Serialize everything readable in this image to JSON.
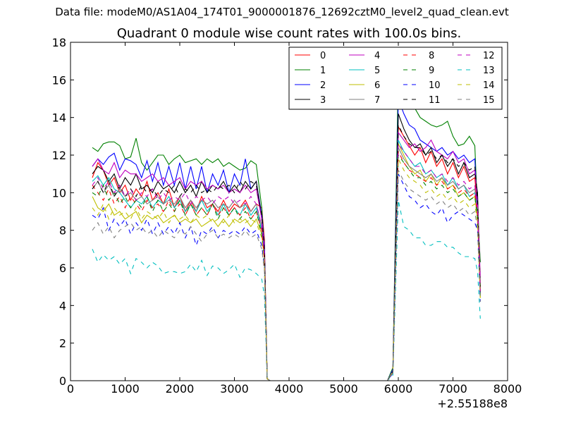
{
  "figure": {
    "suptitle": "Data file: modeM0/AS1A04_174T01_9000001876_12692cztM0_level2_quad_clean.evt",
    "title": "Quadrant 0 module wise count rates with 100.0s bins.",
    "x_offset_label": "+2.55188e8"
  },
  "chart_data": {
    "type": "line",
    "title": "Quadrant 0 module wise count rates with 100.0s bins.",
    "xlabel": "",
    "ylabel": "",
    "xlim": [
      0,
      8000
    ],
    "ylim": [
      0,
      18
    ],
    "x_ticks": [
      0,
      1000,
      2000,
      3000,
      4000,
      5000,
      6000,
      7000,
      8000
    ],
    "y_ticks": [
      0,
      2,
      4,
      6,
      8,
      10,
      12,
      14,
      16,
      18
    ],
    "x_offset": "+2.55188e8",
    "grid": false,
    "legend_position": "top-right",
    "legend_columns": 4,
    "x": [
      400,
      500,
      600,
      700,
      800,
      900,
      1000,
      1100,
      1200,
      1300,
      1400,
      1500,
      1600,
      1700,
      1800,
      1900,
      2000,
      2100,
      2200,
      2300,
      2400,
      2500,
      2600,
      2700,
      2800,
      2900,
      3000,
      3100,
      3200,
      3300,
      3400,
      3500,
      3550,
      3600,
      3650,
      5800,
      5900,
      6000,
      6100,
      6200,
      6300,
      6400,
      6500,
      6600,
      6700,
      6800,
      6900,
      7000,
      7100,
      7200,
      7300,
      7400,
      7450,
      7500
    ],
    "series": [
      {
        "name": "0",
        "color": "#ff0000",
        "dash": "solid",
        "values": [
          10.8,
          11.6,
          11.2,
          10.4,
          10.8,
          10.0,
          10.4,
          9.6,
          10.2,
          9.8,
          10.6,
          9.6,
          10.0,
          9.4,
          10.2,
          9.2,
          9.8,
          9.0,
          9.6,
          9.0,
          9.8,
          9.2,
          9.4,
          9.0,
          9.6,
          9.0,
          9.4,
          9.2,
          9.6,
          9.0,
          9.4,
          9.2,
          7.5,
          0.1,
          0.0,
          0.0,
          0.5,
          13.5,
          13.0,
          12.5,
          12.0,
          12.4,
          11.6,
          12.2,
          11.4,
          11.8,
          11.0,
          11.6,
          10.8,
          11.4,
          10.6,
          10.8,
          9.0,
          4.9
        ]
      },
      {
        "name": "1",
        "color": "#008000",
        "dash": "solid",
        "values": [
          12.4,
          12.2,
          12.6,
          12.7,
          12.7,
          12.5,
          11.8,
          11.9,
          12.9,
          11.6,
          11.2,
          11.6,
          12.0,
          12.0,
          11.5,
          11.8,
          12.0,
          11.6,
          11.7,
          11.8,
          11.5,
          11.8,
          11.6,
          11.8,
          11.4,
          11.6,
          11.4,
          11.2,
          11.3,
          11.7,
          11.5,
          9.2,
          7.0,
          0.1,
          0.0,
          0.0,
          0.7,
          16.5,
          15.6,
          14.8,
          14.5,
          14.0,
          13.8,
          13.6,
          13.5,
          13.6,
          13.8,
          13.0,
          12.5,
          12.6,
          13.0,
          12.5,
          9.0,
          6.3
        ]
      },
      {
        "name": "2",
        "color": "#0000ff",
        "dash": "solid",
        "values": [
          11.4,
          11.8,
          11.5,
          11.9,
          12.1,
          11.2,
          11.8,
          11.7,
          11.5,
          10.8,
          11.7,
          10.6,
          11.6,
          10.4,
          11.4,
          10.4,
          11.6,
          10.2,
          11.4,
          10.2,
          11.4,
          10.0,
          11.0,
          10.4,
          11.2,
          10.0,
          11.0,
          10.4,
          11.8,
          10.2,
          10.6,
          8.8,
          7.2,
          0.1,
          0.0,
          0.0,
          0.6,
          15.0,
          14.2,
          13.6,
          13.4,
          12.8,
          12.6,
          12.4,
          12.2,
          12.4,
          12.0,
          12.2,
          11.8,
          12.0,
          11.6,
          11.8,
          9.0,
          4.6
        ]
      },
      {
        "name": "3",
        "color": "#000000",
        "dash": "solid",
        "values": [
          11.0,
          11.4,
          11.2,
          10.6,
          11.0,
          10.2,
          10.8,
          10.4,
          11.0,
          10.2,
          10.4,
          10.0,
          10.6,
          10.2,
          10.4,
          10.0,
          10.6,
          10.0,
          10.4,
          9.8,
          10.6,
          10.0,
          10.4,
          10.2,
          10.6,
          10.0,
          10.4,
          10.0,
          10.6,
          10.2,
          10.6,
          8.6,
          6.8,
          0.1,
          0.0,
          0.0,
          0.5,
          14.2,
          13.4,
          12.8,
          12.4,
          12.6,
          12.0,
          12.4,
          11.6,
          12.0,
          11.4,
          11.8,
          11.0,
          11.6,
          10.8,
          11.0,
          10.0,
          5.0
        ]
      },
      {
        "name": "4",
        "color": "#bf00bf",
        "dash": "solid",
        "values": [
          11.4,
          11.8,
          11.2,
          11.0,
          11.6,
          10.8,
          11.2,
          11.0,
          11.0,
          10.6,
          10.8,
          11.0,
          10.6,
          10.8,
          10.4,
          10.6,
          10.8,
          10.2,
          10.6,
          10.4,
          10.6,
          10.2,
          10.4,
          10.2,
          10.4,
          10.0,
          10.2,
          10.0,
          10.4,
          10.0,
          10.2,
          8.6,
          6.8,
          0.1,
          0.0,
          0.0,
          0.5,
          13.2,
          12.8,
          12.4,
          12.6,
          12.2,
          12.4,
          12.8,
          12.2,
          12.0,
          11.8,
          12.2,
          11.6,
          11.8,
          11.0,
          11.2,
          9.5,
          5.5
        ]
      },
      {
        "name": "5",
        "color": "#00bfbf",
        "dash": "solid",
        "values": [
          10.6,
          10.9,
          10.4,
          10.8,
          10.2,
          10.0,
          9.6,
          9.2,
          9.6,
          9.4,
          9.8,
          9.2,
          9.6,
          9.4,
          9.8,
          9.2,
          9.6,
          9.0,
          9.4,
          9.0,
          9.6,
          9.0,
          9.4,
          8.8,
          9.4,
          8.8,
          9.2,
          8.8,
          9.4,
          8.8,
          9.2,
          8.0,
          6.5,
          0.1,
          0.0,
          0.0,
          0.5,
          12.8,
          12.2,
          11.8,
          11.4,
          11.6,
          11.0,
          11.2,
          10.8,
          11.0,
          10.4,
          10.8,
          10.2,
          10.4,
          9.8,
          10.0,
          8.8,
          4.6
        ]
      },
      {
        "name": "6",
        "color": "#bfbf00",
        "dash": "solid",
        "values": [
          9.8,
          9.2,
          9.0,
          9.4,
          8.8,
          9.0,
          8.6,
          8.8,
          9.0,
          8.4,
          8.8,
          8.6,
          8.8,
          8.4,
          8.6,
          8.8,
          8.4,
          8.6,
          8.4,
          8.6,
          8.2,
          8.4,
          8.6,
          8.2,
          8.6,
          8.2,
          8.6,
          8.4,
          8.6,
          8.2,
          8.6,
          7.8,
          6.4,
          0.1,
          0.0,
          0.0,
          0.5,
          12.6,
          12.0,
          11.4,
          11.0,
          11.2,
          10.6,
          11.0,
          10.4,
          10.8,
          10.2,
          10.4,
          9.8,
          10.0,
          9.6,
          9.8,
          8.6,
          4.4
        ]
      },
      {
        "name": "7",
        "color": "#808080",
        "dash": "solid",
        "values": [
          10.2,
          10.6,
          10.0,
          10.4,
          9.8,
          10.2,
          9.8,
          10.0,
          9.6,
          9.8,
          9.4,
          9.6,
          9.8,
          9.4,
          9.6,
          9.4,
          9.8,
          9.2,
          9.6,
          9.2,
          9.6,
          9.4,
          9.6,
          9.2,
          9.4,
          9.2,
          9.6,
          9.2,
          9.4,
          9.0,
          9.4,
          8.2,
          6.6,
          0.1,
          0.0,
          0.0,
          0.5,
          12.4,
          11.8,
          11.4,
          11.2,
          11.0,
          10.8,
          11.0,
          10.6,
          10.8,
          10.4,
          10.6,
          10.2,
          10.4,
          10.0,
          10.2,
          9.0,
          4.8
        ]
      },
      {
        "name": "8",
        "color": "#ff0000",
        "dash": "dashed",
        "values": [
          10.4,
          10.0,
          9.6,
          10.2,
          9.4,
          9.8,
          9.2,
          9.8,
          9.4,
          9.0,
          9.6,
          9.2,
          9.4,
          9.0,
          9.6,
          9.0,
          9.4,
          8.8,
          9.4,
          8.8,
          9.2,
          8.8,
          9.4,
          8.8,
          9.2,
          8.8,
          9.2,
          8.8,
          9.2,
          8.6,
          9.0,
          8.0,
          6.4,
          0.1,
          0.0,
          0.0,
          0.5,
          12.2,
          11.6,
          11.2,
          11.0,
          10.8,
          10.6,
          10.8,
          10.4,
          10.6,
          10.2,
          10.4,
          10.0,
          10.2,
          9.8,
          10.0,
          8.8,
          4.6
        ]
      },
      {
        "name": "9",
        "color": "#008000",
        "dash": "dashed",
        "values": [
          10.0,
          9.8,
          10.4,
          9.6,
          10.0,
          9.4,
          9.8,
          9.2,
          9.6,
          9.2,
          9.8,
          9.0,
          9.6,
          9.0,
          9.4,
          9.0,
          9.6,
          8.8,
          9.4,
          8.8,
          9.2,
          8.8,
          9.4,
          8.6,
          9.2,
          8.8,
          9.2,
          8.6,
          9.0,
          8.6,
          9.0,
          7.8,
          6.4,
          0.1,
          0.0,
          0.0,
          0.5,
          12.0,
          11.6,
          11.2,
          10.8,
          10.8,
          10.4,
          10.6,
          10.2,
          10.4,
          10.0,
          10.2,
          9.8,
          10.0,
          9.6,
          9.8,
          8.6,
          4.5
        ]
      },
      {
        "name": "10",
        "color": "#0000ff",
        "dash": "dashed",
        "values": [
          8.8,
          8.6,
          9.2,
          8.0,
          8.6,
          8.2,
          8.6,
          7.8,
          8.4,
          8.0,
          8.6,
          7.8,
          8.4,
          7.8,
          8.2,
          7.8,
          8.4,
          7.6,
          8.2,
          7.2,
          8.0,
          7.8,
          8.2,
          7.6,
          8.0,
          7.8,
          8.0,
          7.8,
          8.2,
          7.8,
          8.0,
          7.2,
          6.0,
          0.1,
          0.0,
          0.0,
          0.4,
          11.0,
          10.4,
          9.8,
          9.6,
          9.2,
          9.4,
          9.0,
          8.8,
          9.2,
          8.4,
          8.8,
          9.0,
          8.8,
          8.6,
          8.4,
          8.0,
          4.2
        ]
      },
      {
        "name": "11",
        "color": "#000000",
        "dash": "dashed",
        "values": [
          10.2,
          10.6,
          10.0,
          10.6,
          9.8,
          10.4,
          9.8,
          10.2,
          9.8,
          10.4,
          10.0,
          10.2,
          9.8,
          10.2,
          10.0,
          10.4,
          9.8,
          10.2,
          10.0,
          10.4,
          10.0,
          10.2,
          10.0,
          10.4,
          10.2,
          10.4,
          10.0,
          10.6,
          10.2,
          10.6,
          10.4,
          8.8,
          7.0,
          0.1,
          0.0,
          0.0,
          0.5,
          13.6,
          13.0,
          12.6,
          12.4,
          12.4,
          12.0,
          12.2,
          11.8,
          12.0,
          11.6,
          11.8,
          11.4,
          11.6,
          11.2,
          11.4,
          9.6,
          5.0
        ]
      },
      {
        "name": "12",
        "color": "#bf00bf",
        "dash": "dashed",
        "values": [
          10.4,
          10.8,
          10.2,
          10.6,
          10.0,
          10.4,
          9.8,
          10.2,
          9.6,
          10.0,
          9.8,
          10.2,
          9.6,
          10.0,
          9.6,
          9.8,
          9.6,
          10.0,
          9.4,
          9.8,
          9.6,
          9.8,
          9.4,
          9.8,
          9.6,
          9.8,
          9.4,
          9.6,
          9.4,
          9.8,
          9.4,
          8.2,
          6.6,
          0.1,
          0.0,
          0.0,
          0.5,
          12.6,
          12.2,
          11.8,
          11.4,
          11.4,
          11.0,
          11.2,
          10.8,
          11.0,
          10.6,
          10.8,
          10.4,
          10.6,
          10.2,
          10.4,
          9.0,
          4.8
        ]
      },
      {
        "name": "13",
        "color": "#00bfbf",
        "dash": "dashed",
        "values": [
          7.0,
          6.3,
          6.7,
          6.4,
          6.6,
          6.2,
          6.5,
          5.7,
          6.5,
          6.3,
          6.0,
          6.3,
          6.1,
          5.7,
          5.8,
          5.8,
          5.7,
          5.8,
          6.2,
          5.8,
          6.4,
          5.6,
          6.1,
          6.0,
          5.7,
          5.9,
          6.2,
          5.5,
          6.0,
          5.9,
          5.7,
          5.4,
          4.5,
          0.1,
          0.0,
          0.0,
          0.3,
          9.6,
          8.2,
          8.0,
          7.6,
          7.6,
          7.2,
          7.2,
          7.4,
          7.4,
          7.1,
          7.1,
          6.8,
          6.6,
          6.6,
          6.5,
          5.8,
          3.3
        ]
      },
      {
        "name": "14",
        "color": "#bfbf00",
        "dash": "dashed",
        "values": [
          9.2,
          8.8,
          9.4,
          8.6,
          9.2,
          8.8,
          9.0,
          8.6,
          9.2,
          8.6,
          9.0,
          8.8,
          8.6,
          9.0,
          8.4,
          8.8,
          8.6,
          8.8,
          8.4,
          8.8,
          8.6,
          8.8,
          8.4,
          8.6,
          8.4,
          8.8,
          8.4,
          8.6,
          8.4,
          8.6,
          8.4,
          7.6,
          6.2,
          0.1,
          0.0,
          0.0,
          0.5,
          11.8,
          11.2,
          10.8,
          10.6,
          10.4,
          10.0,
          10.2,
          9.8,
          10.0,
          9.6,
          9.8,
          9.4,
          9.6,
          9.2,
          9.4,
          8.4,
          4.4
        ]
      },
      {
        "name": "15",
        "color": "#808080",
        "dash": "dashed",
        "values": [
          8.0,
          8.4,
          7.8,
          8.2,
          7.6,
          8.0,
          8.2,
          8.4,
          8.0,
          8.2,
          7.8,
          8.0,
          7.6,
          8.0,
          7.8,
          7.6,
          8.0,
          7.8,
          8.2,
          7.8,
          7.4,
          7.8,
          8.0,
          7.6,
          7.8,
          7.6,
          7.8,
          7.6,
          8.0,
          7.6,
          7.8,
          7.0,
          5.8,
          0.1,
          0.0,
          0.0,
          0.4,
          11.2,
          10.6,
          10.2,
          10.0,
          9.8,
          9.6,
          9.8,
          9.4,
          9.6,
          9.2,
          9.4,
          9.0,
          9.2,
          8.8,
          9.0,
          8.0,
          4.2
        ]
      }
    ]
  }
}
